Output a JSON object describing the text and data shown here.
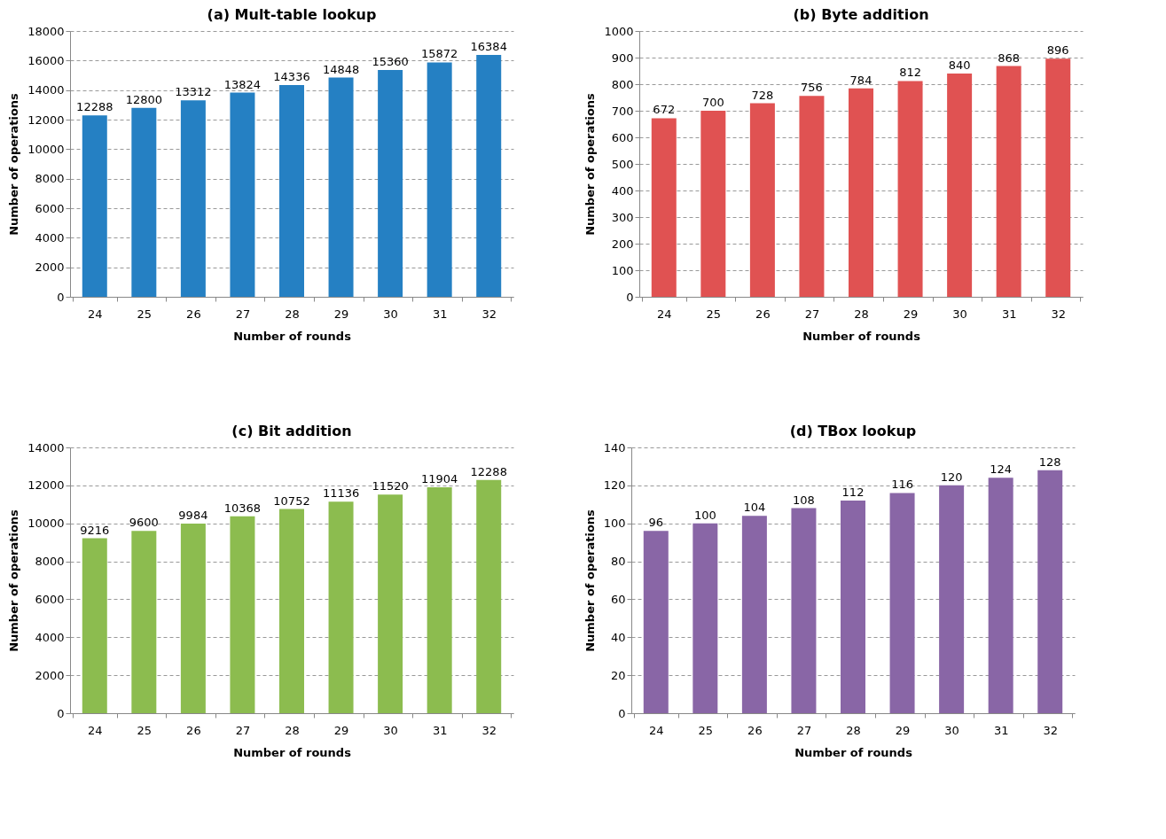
{
  "chart_data": [
    {
      "type": "bar",
      "title": "(a) Mult-table lookup",
      "xlabel": "Number of rounds",
      "ylabel": "Number of operations",
      "categories": [
        "24",
        "25",
        "26",
        "27",
        "28",
        "29",
        "30",
        "31",
        "32"
      ],
      "values": [
        12288,
        12800,
        13312,
        13824,
        14336,
        14848,
        15360,
        15872,
        16384
      ],
      "color": "#2580c3",
      "ylim": [
        0,
        18000
      ],
      "yticks": [
        0,
        2000,
        4000,
        6000,
        8000,
        10000,
        12000,
        14000,
        16000,
        18000
      ],
      "grid": "y",
      "data_labels": true
    },
    {
      "type": "bar",
      "title": "(b) Byte addition",
      "xlabel": "Number of rounds",
      "ylabel": "Number of operations",
      "categories": [
        "24",
        "25",
        "26",
        "27",
        "28",
        "29",
        "30",
        "31",
        "32"
      ],
      "values": [
        672,
        700,
        728,
        756,
        784,
        812,
        840,
        868,
        896
      ],
      "color": "#e05252",
      "ylim": [
        0,
        1000
      ],
      "yticks": [
        0,
        100,
        200,
        300,
        400,
        500,
        600,
        700,
        800,
        900,
        1000
      ],
      "grid": "y",
      "data_labels": true
    },
    {
      "type": "bar",
      "title": "(c) Bit addition",
      "xlabel": "Number of rounds",
      "ylabel": "Number of operations",
      "categories": [
        "24",
        "25",
        "26",
        "27",
        "28",
        "29",
        "30",
        "31",
        "32"
      ],
      "values": [
        9216,
        9600,
        9984,
        10368,
        10752,
        11136,
        11520,
        11904,
        12288
      ],
      "color": "#8cbc4f",
      "ylim": [
        0,
        14000
      ],
      "yticks": [
        0,
        2000,
        4000,
        6000,
        8000,
        10000,
        12000,
        14000
      ],
      "grid": "y",
      "data_labels": true
    },
    {
      "type": "bar",
      "title": "(d) TBox lookup",
      "xlabel": "Number of rounds",
      "ylabel": "Number of operations",
      "categories": [
        "24",
        "25",
        "26",
        "27",
        "28",
        "29",
        "30",
        "31",
        "32"
      ],
      "values": [
        96,
        100,
        104,
        108,
        112,
        116,
        120,
        124,
        128
      ],
      "color": "#8966a6",
      "ylim": [
        0,
        140
      ],
      "yticks": [
        0,
        20,
        40,
        60,
        80,
        100,
        120,
        140
      ],
      "grid": "y",
      "data_labels": true
    }
  ]
}
